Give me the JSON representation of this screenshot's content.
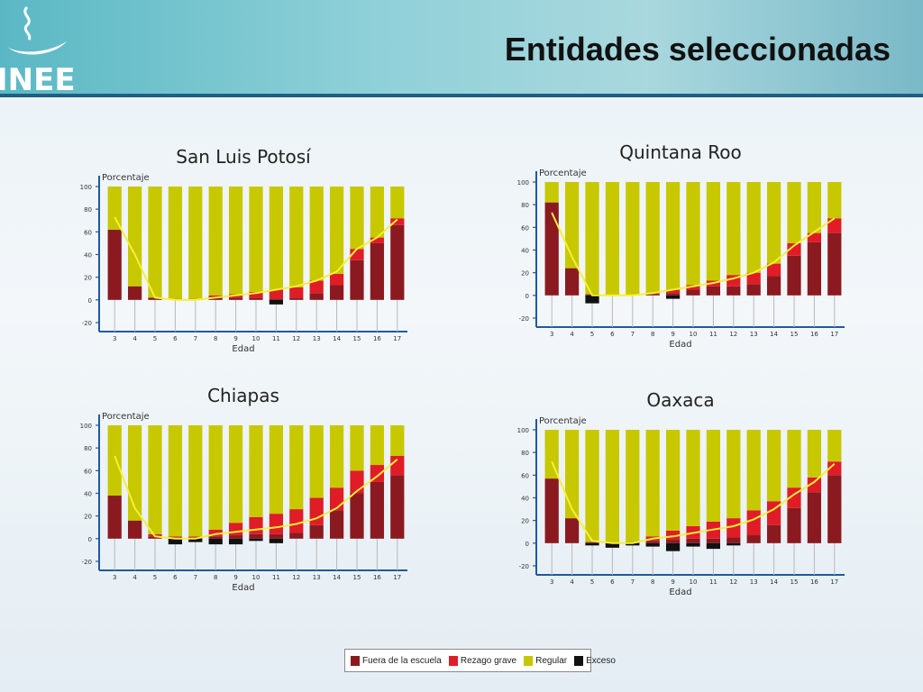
{
  "slide": {
    "title": "Entidades seleccionadas",
    "logo_text": "INEE"
  },
  "colors": {
    "fuera": "#8b1a20",
    "rezago": "#e01c26",
    "regular": "#c7c800",
    "exceso": "#111111",
    "trend": "#f5ef3a",
    "axis": "#1f5a9e"
  },
  "legend": {
    "items": [
      {
        "key": "fuera",
        "label": "Fuera de la escuela"
      },
      {
        "key": "rezago",
        "label": "Rezago grave"
      },
      {
        "key": "regular",
        "label": "Regular"
      },
      {
        "key": "exceso",
        "label": "Exceso"
      }
    ]
  },
  "chart_data": [
    {
      "type": "bar",
      "title": "San Luis Potosí",
      "ylabel": "Porcentaje",
      "xlabel": "Edad",
      "ylim": [
        -20,
        100
      ],
      "yticks": [
        -20,
        0,
        20,
        40,
        60,
        80,
        100
      ],
      "categories": [
        "3",
        "4",
        "5",
        "6",
        "7",
        "8",
        "9",
        "10",
        "11",
        "12",
        "13",
        "14",
        "15",
        "16",
        "17"
      ],
      "series": [
        {
          "name": "Fuera de la escuela",
          "key": "fuera",
          "values": [
            62,
            12,
            2,
            1,
            1,
            2,
            2,
            2,
            1,
            2,
            6,
            13,
            35,
            50,
            66
          ]
        },
        {
          "name": "Rezago grave",
          "key": "rezago",
          "values": [
            0,
            0,
            0,
            0,
            0,
            2,
            3,
            5,
            8,
            9,
            11,
            10,
            10,
            5,
            6
          ]
        },
        {
          "name": "Regular",
          "key": "regular",
          "values": [
            38,
            88,
            98,
            99,
            99,
            96,
            95,
            93,
            91,
            89,
            83,
            77,
            55,
            45,
            28
          ]
        },
        {
          "name": "Exceso",
          "key": "exceso",
          "values": [
            0,
            0,
            0,
            0,
            0,
            0,
            0,
            0,
            -4,
            0,
            0,
            0,
            0,
            0,
            0
          ]
        }
      ],
      "trend": [
        73,
        40,
        2,
        0,
        0,
        2,
        4,
        6,
        9,
        12,
        17,
        25,
        45,
        55,
        71
      ]
    },
    {
      "type": "bar",
      "title": "Quintana Roo",
      "ylabel": "Porcentaje",
      "xlabel": "Edad",
      "ylim": [
        -20,
        100
      ],
      "yticks": [
        -20,
        0,
        20,
        40,
        60,
        80,
        100
      ],
      "categories": [
        "3",
        "4",
        "5",
        "6",
        "7",
        "8",
        "9",
        "10",
        "11",
        "12",
        "13",
        "14",
        "15",
        "16",
        "17"
      ],
      "series": [
        {
          "name": "Fuera de la escuela",
          "key": "fuera",
          "values": [
            82,
            24,
            1,
            0,
            0,
            1,
            2,
            5,
            8,
            8,
            10,
            17,
            35,
            47,
            55
          ]
        },
        {
          "name": "Rezago grave",
          "key": "rezago",
          "values": [
            0,
            0,
            0,
            0,
            0,
            1,
            3,
            4,
            5,
            10,
            10,
            11,
            11,
            8,
            13
          ]
        },
        {
          "name": "Regular",
          "key": "regular",
          "values": [
            18,
            76,
            99,
            100,
            100,
            98,
            95,
            91,
            87,
            82,
            80,
            72,
            54,
            45,
            32
          ]
        },
        {
          "name": "Exceso",
          "key": "exceso",
          "values": [
            0,
            0,
            -7,
            0,
            0,
            0,
            -3,
            0,
            0,
            0,
            0,
            0,
            0,
            0,
            0
          ]
        }
      ],
      "trend": [
        73,
        34,
        0,
        0,
        0,
        2,
        5,
        8,
        11,
        15,
        20,
        29,
        44,
        56,
        68
      ]
    },
    {
      "type": "bar",
      "title": "Chiapas",
      "ylabel": "Porcentaje",
      "xlabel": "Edad",
      "ylim": [
        -20,
        100
      ],
      "yticks": [
        -20,
        0,
        20,
        40,
        60,
        80,
        100
      ],
      "categories": [
        "3",
        "4",
        "5",
        "6",
        "7",
        "8",
        "9",
        "10",
        "11",
        "12",
        "13",
        "14",
        "15",
        "16",
        "17"
      ],
      "series": [
        {
          "name": "Fuera de la escuela",
          "key": "fuera",
          "values": [
            38,
            16,
            2,
            1,
            1,
            2,
            3,
            4,
            4,
            5,
            12,
            25,
            40,
            50,
            56
          ]
        },
        {
          "name": "Rezago grave",
          "key": "rezago",
          "values": [
            0,
            0,
            2,
            1,
            1,
            6,
            11,
            15,
            18,
            21,
            24,
            20,
            20,
            15,
            17
          ]
        },
        {
          "name": "Regular",
          "key": "regular",
          "values": [
            62,
            84,
            96,
            98,
            98,
            92,
            86,
            81,
            78,
            74,
            64,
            55,
            40,
            35,
            27
          ]
        },
        {
          "name": "Exceso",
          "key": "exceso",
          "values": [
            0,
            0,
            0,
            -5,
            -3,
            -5,
            -5,
            -2,
            -4,
            0,
            0,
            0,
            0,
            0,
            0
          ]
        }
      ],
      "trend": [
        73,
        27,
        2,
        0,
        0,
        4,
        6,
        8,
        10,
        13,
        18,
        27,
        42,
        55,
        70
      ]
    },
    {
      "type": "bar",
      "title": "Oaxaca",
      "ylabel": "Porcentaje",
      "xlabel": "Edad",
      "ylim": [
        -20,
        100
      ],
      "yticks": [
        -20,
        0,
        20,
        40,
        60,
        80,
        100
      ],
      "categories": [
        "3",
        "4",
        "5",
        "6",
        "7",
        "8",
        "9",
        "10",
        "11",
        "12",
        "13",
        "14",
        "15",
        "16",
        "17"
      ],
      "series": [
        {
          "name": "Fuera de la escuela",
          "key": "fuera",
          "values": [
            57,
            22,
            1,
            0,
            1,
            2,
            3,
            4,
            4,
            5,
            7,
            16,
            31,
            45,
            60
          ]
        },
        {
          "name": "Rezago grave",
          "key": "rezago",
          "values": [
            0,
            0,
            0,
            0,
            0,
            4,
            8,
            11,
            15,
            17,
            22,
            21,
            18,
            13,
            12
          ]
        },
        {
          "name": "Regular",
          "key": "regular",
          "values": [
            43,
            78,
            99,
            100,
            99,
            94,
            89,
            85,
            81,
            78,
            71,
            63,
            51,
            42,
            28
          ]
        },
        {
          "name": "Exceso",
          "key": "exceso",
          "values": [
            0,
            0,
            -2,
            -4,
            -2,
            -3,
            -7,
            -3,
            -5,
            -2,
            0,
            0,
            0,
            0,
            0
          ]
        }
      ],
      "trend": [
        72,
        30,
        2,
        0,
        0,
        4,
        6,
        9,
        12,
        15,
        21,
        30,
        43,
        54,
        70
      ]
    }
  ]
}
